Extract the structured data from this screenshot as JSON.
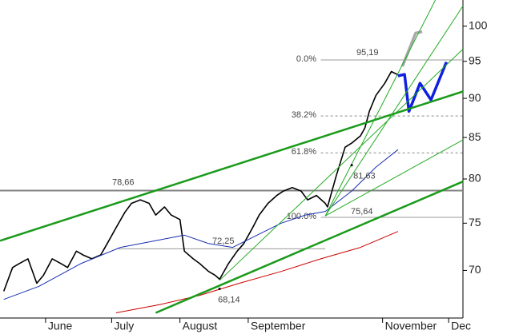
{
  "chart_data": {
    "type": "line",
    "log_scale": true,
    "xlim": [
      -20.7,
      189.5
    ],
    "ylim": [
      65.3,
      103.9
    ],
    "xticks": [
      {
        "value": 0,
        "label": "June"
      },
      {
        "value": 30,
        "label": "July"
      },
      {
        "value": 61,
        "label": "August"
      },
      {
        "value": 92,
        "label": "September"
      },
      {
        "value": 153,
        "label": "November"
      },
      {
        "value": 183,
        "label": "Dec"
      }
    ],
    "yticks": [
      70,
      75,
      80,
      85,
      90,
      95,
      100
    ],
    "series": [
      {
        "color": "#000000",
        "width": 1.6,
        "x": [
          -19,
          -15,
          -12,
          -8,
          -4,
          -1,
          3,
          7,
          10,
          14,
          17,
          21,
          25,
          28,
          32,
          36,
          39,
          43,
          47,
          50,
          54,
          57,
          61,
          63,
          67,
          70,
          74,
          77,
          79,
          83,
          87,
          90,
          94,
          97,
          101,
          105,
          108,
          112,
          116,
          119,
          123,
          127,
          128,
          132,
          136,
          139,
          143,
          145,
          147,
          150,
          154,
          157,
          161
        ],
        "values": [
          67.9,
          70.3,
          70.7,
          71.2,
          68.7,
          69.5,
          71.2,
          70.7,
          70.3,
          72.0,
          71.6,
          71.2,
          71.6,
          72.8,
          74.5,
          76.2,
          77.2,
          77.6,
          77.2,
          75.9,
          76.8,
          75.9,
          75.4,
          72.0,
          71.2,
          70.7,
          69.9,
          69.5,
          69.1,
          70.7,
          72.0,
          72.8,
          74.5,
          75.9,
          77.2,
          78.1,
          78.6,
          79.0,
          78.6,
          77.6,
          78.1,
          77.2,
          76.8,
          80.4,
          83.8,
          84.3,
          85.2,
          86.2,
          88.3,
          90.4,
          92.0,
          93.6,
          93.0
        ]
      },
      {
        "color": "#1a2fb0",
        "width": 1,
        "x": [
          -19,
          -3,
          16,
          34,
          52,
          63,
          74,
          85,
          96,
          107,
          118,
          127,
          139,
          150,
          160
        ],
        "values": [
          67.1,
          68.4,
          70.7,
          72.4,
          73.2,
          73.7,
          72.8,
          72.4,
          73.7,
          75.0,
          75.9,
          76.3,
          78.6,
          81.4,
          83.5
        ]
      },
      {
        "color": "#cc0000",
        "width": 1,
        "x": [
          32,
          52,
          70,
          88,
          107,
          125,
          143,
          160
        ],
        "values": [
          65.8,
          66.6,
          67.5,
          68.7,
          69.9,
          71.2,
          72.4,
          74.1
        ]
      },
      {
        "color": "#aaaaaa",
        "width": 3.5,
        "x": [
          162,
          168,
          171
        ],
        "values": [
          94.3,
          99.0,
          99.2
        ]
      },
      {
        "color": "#1020e0",
        "width": 3.5,
        "x": [
          160,
          163,
          165,
          170,
          175,
          182
        ],
        "values": [
          93.0,
          93.2,
          88.3,
          92.0,
          89.8,
          94.9
        ]
      },
      {
        "color": "#1a9a1a",
        "width": 2.5,
        "x": [
          -20.7,
          189.5
        ],
        "values": [
          73.1,
          90.9
        ]
      },
      {
        "color": "#1a9a1a",
        "width": 2.5,
        "x": [
          50,
          189.5
        ],
        "values": [
          65.8,
          79.7
        ]
      },
      {
        "color": "#22aa22",
        "width": 1,
        "x": [
          79,
          189.5
        ],
        "values": [
          69.0,
          96.7
        ]
      },
      {
        "color": "#22aa22",
        "width": 1,
        "x": [
          127,
          177
        ],
        "values": [
          75.8,
          103.9
        ]
      },
      {
        "color": "#22aa22",
        "width": 1,
        "x": [
          127,
          189.5
        ],
        "values": [
          75.8,
          103.0
        ]
      },
      {
        "color": "#22aa22",
        "width": 1,
        "x": [
          127,
          189.5
        ],
        "values": [
          75.8,
          84.7
        ]
      }
    ],
    "levels": [
      {
        "value": 78.66,
        "label": "78,66",
        "x": [
          -20.7,
          189.5
        ],
        "color": "#808080",
        "width": 2
      },
      {
        "value": 95.19,
        "label": "95,19",
        "fib": "0.0%",
        "x": [
          125,
          189.5
        ],
        "color": "#999999",
        "width": 1
      },
      {
        "value": 87.72,
        "fib": "38.2%",
        "x": [
          125,
          189.5
        ],
        "color": "#888888",
        "width": 1,
        "dashed": true
      },
      {
        "value": 83.11,
        "fib": "61.8%",
        "x": [
          125,
          189.5
        ],
        "color": "#888888",
        "width": 1,
        "dashed": true
      },
      {
        "value": 75.64,
        "label": "75,64",
        "fib": "100.0%",
        "x": [
          125,
          189.5
        ],
        "color": "#999999",
        "width": 1
      },
      {
        "value": 72.25,
        "label": "72,25",
        "x": [
          33,
          127
        ],
        "color": "#999999",
        "width": 1
      }
    ],
    "points": [
      {
        "value": 81.63,
        "label": "81,63",
        "x": 139
      },
      {
        "value": 68.14,
        "label": "68,14",
        "x": 79
      }
    ]
  }
}
